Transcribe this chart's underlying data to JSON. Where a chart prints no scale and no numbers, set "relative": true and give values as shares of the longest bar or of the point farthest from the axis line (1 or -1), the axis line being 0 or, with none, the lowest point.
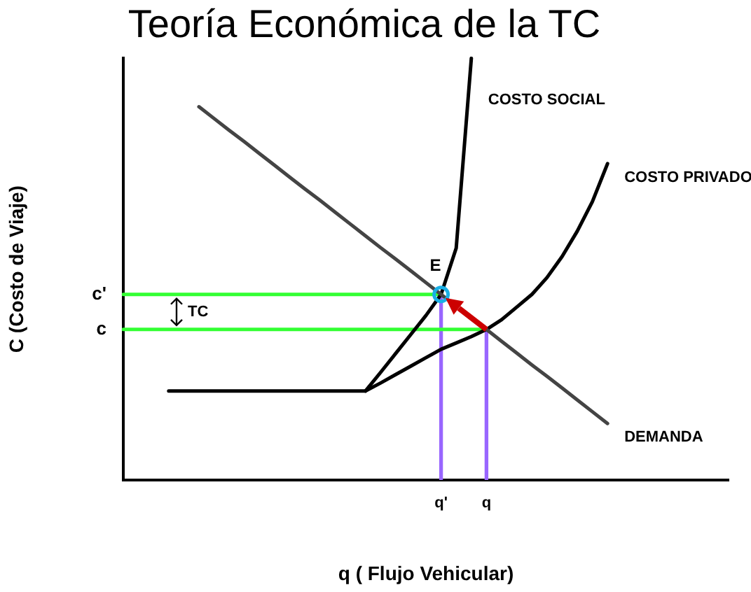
{
  "chart_data": {
    "type": "line",
    "title": "Teoría Económica de la TC",
    "xlabel": "q ( Flujo Vehicular)",
    "ylabel": "C (Costo de Viaje)",
    "relative": true,
    "grid": false,
    "legend": false,
    "line_style": "solid",
    "categories": [
      null,
      null,
      null,
      null,
      null,
      null,
      null,
      null,
      null,
      null,
      null,
      null,
      null,
      null,
      null,
      null,
      null,
      null,
      null,
      null,
      null,
      "q'",
      null,
      null,
      "q",
      null,
      null,
      null,
      null,
      null,
      null,
      null,
      null,
      null,
      null,
      null,
      null,
      null,
      null,
      null,
      null
    ],
    "series": [
      {
        "name": "DEMANDA",
        "color": "#444444",
        "values": [
          null,
          null,
          null,
          null,
          null,
          0.885,
          0.857,
          0.829,
          0.802,
          0.774,
          0.746,
          0.718,
          0.69,
          0.663,
          0.635,
          0.607,
          0.579,
          0.551,
          0.524,
          0.496,
          0.468,
          0.44,
          0.412,
          null,
          0.357,
          0.329,
          0.301,
          0.273,
          0.246,
          0.218,
          0.19,
          0.162,
          0.134,
          null,
          null,
          null,
          null,
          null,
          null,
          null,
          null
        ]
      },
      {
        "name": "COSTO SOCIAL",
        "color": "#000000",
        "values": [
          null,
          null,
          null,
          null,
          null,
          null,
          null,
          null,
          null,
          null,
          null,
          null,
          null,
          null,
          null,
          null,
          0.211,
          0.255,
          0.3,
          0.345,
          0.39,
          0.44,
          0.55,
          1,
          null,
          null,
          null,
          null,
          null,
          null,
          null,
          null,
          null,
          null,
          null,
          null,
          null,
          null,
          null,
          null,
          null
        ]
      },
      {
        "name": "COSTO PRIVADO",
        "color": "#000000",
        "values": [
          null,
          null,
          null,
          0.211,
          0.211,
          0.211,
          0.211,
          0.211,
          0.211,
          0.211,
          0.211,
          0.211,
          0.211,
          0.211,
          0.211,
          0.211,
          0.211,
          0.23,
          0.25,
          0.27,
          0.29,
          0.31,
          0.325,
          0.34,
          0.357,
          0.38,
          0.41,
          0.44,
          0.48,
          0.53,
          0.59,
          0.66,
          0.75,
          null,
          null,
          null,
          null,
          null,
          null,
          null,
          null
        ]
      },
      {
        "color": "#33ff33",
        "values": [
          0.44,
          0.44,
          0.44,
          0.44,
          0.44,
          0.44,
          0.44,
          0.44,
          0.44,
          0.44,
          0.44,
          0.44,
          0.44,
          0.44,
          0.44,
          0.44,
          0.44,
          0.44,
          0.44,
          0.44,
          0.44,
          0.44,
          null,
          null,
          null,
          null,
          null,
          null,
          null,
          null,
          null,
          null,
          null,
          null,
          null,
          null,
          null,
          null,
          null,
          null,
          null
        ]
      },
      {
        "color": "#33ff33",
        "values": [
          0.357,
          0.357,
          0.357,
          0.357,
          0.357,
          0.357,
          0.357,
          0.357,
          0.357,
          0.357,
          0.357,
          0.357,
          0.357,
          0.357,
          0.357,
          0.357,
          0.357,
          0.357,
          0.357,
          0.357,
          0.357,
          0.357,
          0.357,
          0.357,
          0.357,
          null,
          null,
          null,
          null,
          null,
          null,
          null,
          null,
          null,
          null,
          null,
          null,
          null,
          null,
          null,
          null
        ]
      },
      {
        "type": "bar",
        "color": "#9966ff",
        "values": [
          null,
          null,
          null,
          null,
          null,
          null,
          null,
          null,
          null,
          null,
          null,
          null,
          null,
          null,
          null,
          null,
          null,
          null,
          null,
          null,
          null,
          0.44,
          null,
          null,
          0.357,
          null,
          null,
          null,
          null,
          null,
          null,
          null,
          null,
          null,
          null,
          null,
          null,
          null,
          null,
          null,
          null
        ]
      },
      {
        "type": "scatter",
        "color": "#1ab0e6",
        "x": [
          "q'"
        ],
        "values": [
          0.44
        ]
      }
    ],
    "annotations": [
      {
        "text": "E",
        "x": "q'",
        "y": 0.44
      },
      "c'",
      "c",
      "TC"
    ]
  }
}
